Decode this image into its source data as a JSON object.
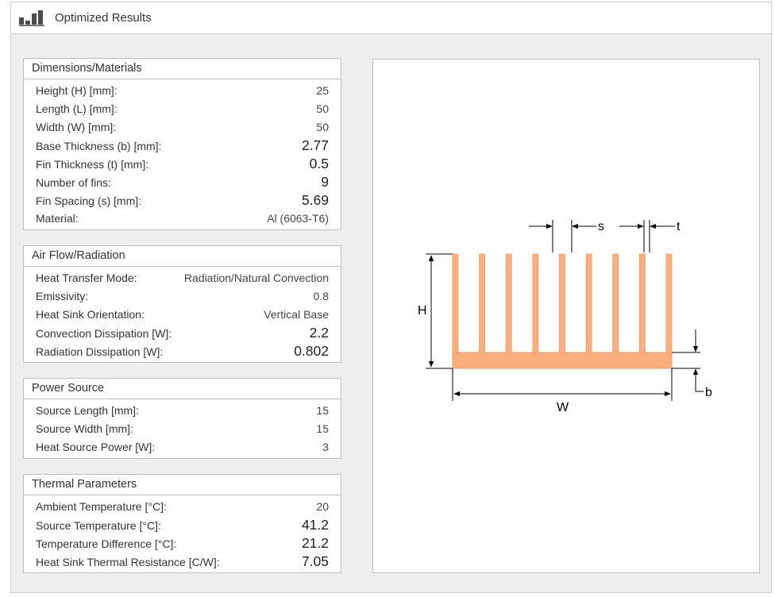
{
  "window": {
    "title": "Optimized Results"
  },
  "dimensions": {
    "header": "Dimensions/Materials",
    "rows": [
      {
        "label": "Height (H) [mm]:",
        "value": "25"
      },
      {
        "label": "Length (L) [mm]:",
        "value": "50"
      },
      {
        "label": "Width (W) [mm]:",
        "value": "50"
      },
      {
        "label": "Base Thickness (b) [mm]:",
        "value": "2.77"
      },
      {
        "label": "Fin Thickness (t) [mm]:",
        "value": "0.5"
      },
      {
        "label": "Number of fins:",
        "value": "9"
      },
      {
        "label": "Fin Spacing (s) [mm]:",
        "value": "5.69"
      },
      {
        "label": "Material:",
        "value": "Al (6063-T6)"
      }
    ]
  },
  "airflow": {
    "header": "Air Flow/Radiation",
    "rows": [
      {
        "label": "Heat Transfer Mode:",
        "value": "Radiation/Natural Convection"
      },
      {
        "label": "Emissivity:",
        "value": "0.8"
      },
      {
        "label": "Heat Sink Orientation:",
        "value": "Vertical Base"
      },
      {
        "label": "Convection Dissipation [W]:",
        "value": "2.2"
      },
      {
        "label": "Radiation Dissipation [W]:",
        "value": "0.802"
      }
    ]
  },
  "power": {
    "header": "Power Source",
    "rows": [
      {
        "label": "Source Length [mm]:",
        "value": "15"
      },
      {
        "label": "Source Width [mm]:",
        "value": "15"
      },
      {
        "label": "Heat Source Power [W]:",
        "value": "3"
      }
    ]
  },
  "thermal": {
    "header": "Thermal Parameters",
    "rows": [
      {
        "label": "Ambient Temperature [°C]:",
        "value": "20"
      },
      {
        "label": "Source Temperature [°C]:",
        "value": "41.2"
      },
      {
        "label": "Temperature Difference [°C]:",
        "value": "21.2"
      },
      {
        "label": "Heat Sink Thermal Resistance [C/W]:",
        "value": "7.05"
      }
    ]
  },
  "diagram": {
    "labels": {
      "H": "H",
      "W": "W",
      "s": "s",
      "t": "t",
      "b": "b"
    },
    "fin_color": "#fbae7e",
    "fin_border": "#f39a63",
    "fin_count": 9
  },
  "icons": {
    "title": "bar-chart-icon"
  }
}
